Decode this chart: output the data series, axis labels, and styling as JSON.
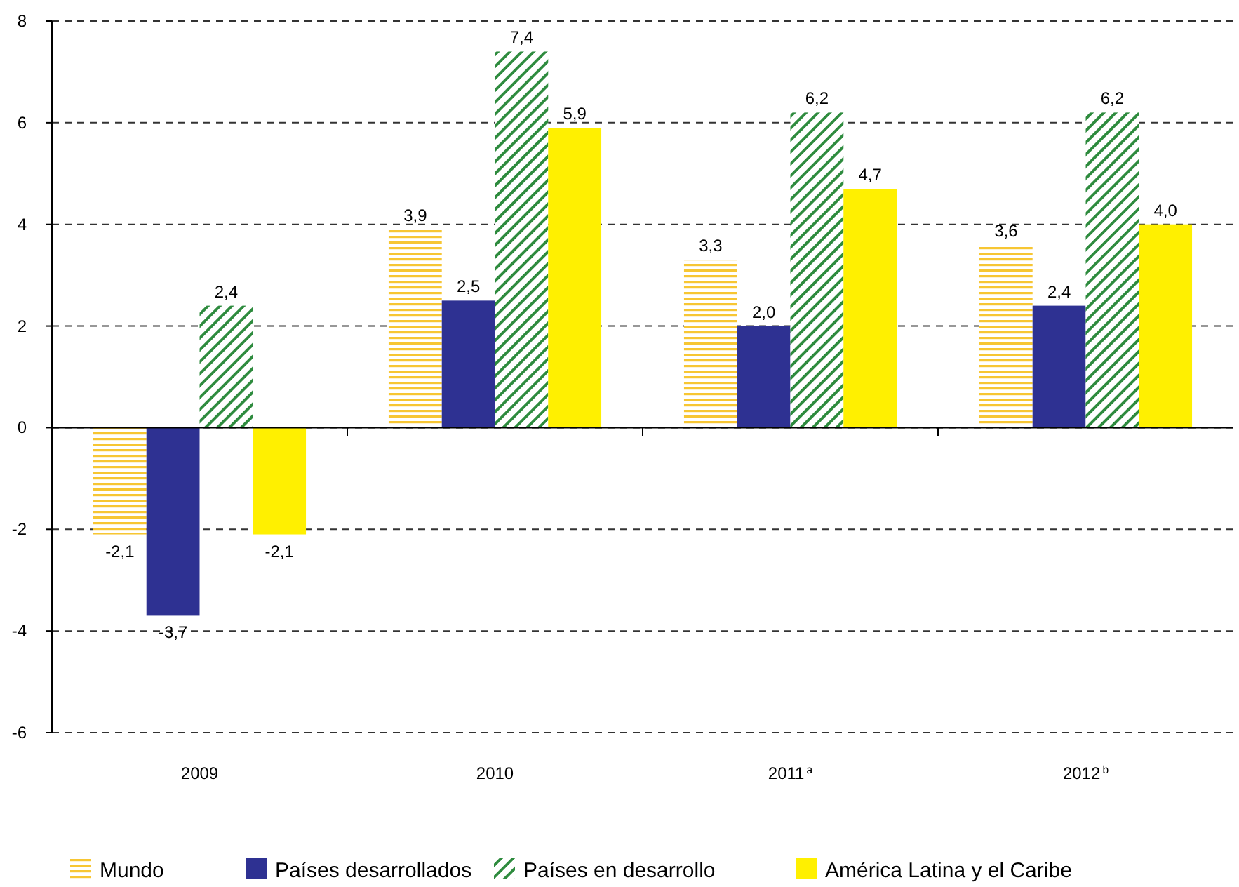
{
  "chart_data": {
    "type": "bar",
    "categories": [
      "2009",
      "2010",
      "2011$^{a}$",
      "2012$^{b}$"
    ],
    "series": [
      {
        "name": "Mundo",
        "color": "#f7c633",
        "values": [
          -2.1,
          3.9,
          3.3,
          3.6
        ],
        "value_labels": [
          "-2,1",
          "3,9",
          "3,3",
          "3,6"
        ]
      },
      {
        "name": "Países desarrollados",
        "color": "#2e3192",
        "values": [
          -3.7,
          2.5,
          2.0,
          2.4
        ],
        "value_labels": [
          "-3,7",
          "2,5",
          "2,0",
          "2,4"
        ]
      },
      {
        "name": "Países en desarrollo",
        "color": "#2e8b3e",
        "values": [
          2.4,
          7.4,
          6.2,
          6.2
        ],
        "value_labels": [
          "2,4",
          "7,4",
          "6,2",
          "6,2"
        ]
      },
      {
        "name": "América Latina y el Caribe",
        "color": "#fff000",
        "values": [
          -2.1,
          5.9,
          4.7,
          4.0
        ],
        "value_labels": [
          "-2,1",
          "5,9",
          "4,7",
          "4,0"
        ]
      }
    ],
    "ylim": [
      -6,
      8
    ],
    "yticks": [
      -6,
      -4,
      -2,
      0,
      2,
      4,
      6,
      8
    ],
    "grid": "y",
    "legend": "bottom"
  }
}
